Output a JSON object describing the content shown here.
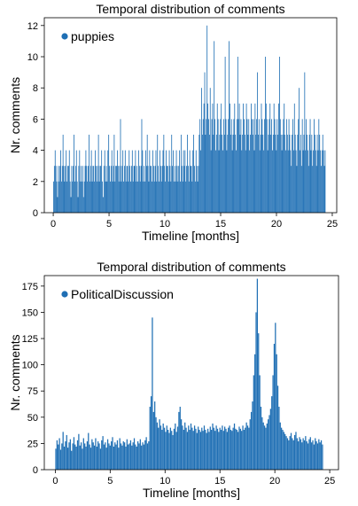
{
  "colors": {
    "bar": "#1f6fb4",
    "axis": "#000000",
    "background": "#ffffff"
  },
  "chart_data": [
    {
      "type": "bar",
      "title": "Temporal distribution of comments",
      "xlabel": "Timeline [months]",
      "ylabel": "Nr. comments",
      "xlim": [
        -0.8,
        25.4
      ],
      "ylim": [
        0,
        12.5
      ],
      "xticks": [
        0,
        5,
        10,
        15,
        20,
        25
      ],
      "yticks": [
        0,
        2,
        4,
        6,
        8,
        10,
        12
      ],
      "x_range": [
        0,
        24.4
      ],
      "legend": {
        "label": "puppies",
        "placement": "top-left"
      },
      "grid": false,
      "series": [
        {
          "name": "puppies",
          "values": [
            2,
            3,
            4,
            3,
            2,
            1,
            3,
            2,
            3,
            4,
            2,
            3,
            5,
            3,
            2,
            3,
            4,
            2,
            3,
            3,
            4,
            2,
            1,
            3,
            2,
            3,
            5,
            2,
            3,
            4,
            2,
            1,
            3,
            4,
            2,
            3,
            2,
            3,
            1,
            2,
            3,
            4,
            3,
            2,
            3,
            5,
            2,
            3,
            4,
            2,
            3,
            3,
            2,
            4,
            3,
            2,
            3,
            5,
            2,
            3,
            3,
            4,
            2,
            1,
            3,
            4,
            2,
            3,
            2,
            4,
            5,
            3,
            2,
            3,
            4,
            2,
            3,
            5,
            2,
            3,
            3,
            4,
            3,
            2,
            3,
            6,
            2,
            3,
            4,
            2,
            3,
            4,
            2,
            3,
            3,
            2,
            4,
            3,
            2,
            3,
            4,
            2,
            3,
            3,
            4,
            2,
            3,
            2,
            4,
            3,
            2,
            3,
            6,
            4,
            2,
            3,
            2,
            4,
            3,
            5,
            3,
            2,
            4,
            3,
            3,
            2,
            4,
            3,
            2,
            3,
            4,
            2,
            5,
            3,
            2,
            4,
            3,
            2,
            3,
            4,
            5,
            3,
            2,
            4,
            3,
            3,
            2,
            4,
            3,
            2,
            5,
            3,
            4,
            2,
            3,
            2,
            4,
            3,
            2,
            3,
            4,
            2,
            5,
            3,
            2,
            4,
            3,
            4,
            2,
            3,
            5,
            3,
            2,
            4,
            3,
            3,
            2,
            4,
            5,
            3,
            2,
            4,
            3,
            2,
            3,
            5,
            6,
            4,
            8,
            5,
            6,
            7,
            9,
            5,
            6,
            12,
            7,
            6,
            5,
            8,
            4,
            6,
            7,
            5,
            11,
            6,
            4,
            5,
            7,
            6,
            4,
            5,
            6,
            7,
            5,
            4,
            6,
            5,
            10,
            6,
            4,
            5,
            6,
            11,
            7,
            5,
            6,
            4,
            5,
            6,
            7,
            5,
            4,
            6,
            10,
            6,
            7,
            5,
            6,
            4,
            5,
            7,
            6,
            5,
            4,
            7,
            6,
            5,
            6,
            4,
            5,
            7,
            6,
            5,
            6,
            4,
            7,
            5,
            6,
            9,
            5,
            6,
            4,
            5,
            7,
            6,
            5,
            4,
            6,
            10,
            7,
            6,
            4,
            5,
            6,
            7,
            5,
            6,
            4,
            5,
            7,
            6,
            5,
            4,
            6,
            5,
            7,
            10,
            6,
            5,
            4,
            5,
            6,
            7,
            5,
            4,
            6,
            5,
            4,
            6,
            5,
            4,
            3,
            5,
            6,
            4,
            7,
            5,
            4,
            3,
            5,
            6,
            8,
            4,
            5,
            3,
            6,
            4,
            5,
            9,
            4,
            6,
            5,
            4,
            3,
            5,
            6,
            4,
            5,
            3,
            4,
            6,
            5,
            4,
            3,
            5,
            4,
            6,
            5,
            4,
            3,
            4,
            5,
            4,
            3,
            4
          ]
        }
      ]
    },
    {
      "type": "bar",
      "title": "Temporal distribution of comments",
      "xlabel": "Timeline [months]",
      "ylabel": "Nr. comments",
      "xlim": [
        -1.0,
        25.8
      ],
      "ylim": [
        0,
        185
      ],
      "xticks": [
        0,
        5,
        10,
        15,
        20,
        25
      ],
      "yticks": [
        0,
        25,
        50,
        75,
        100,
        125,
        150,
        175
      ],
      "x_range": [
        0,
        24.4
      ],
      "legend": {
        "label": "PoliticalDiscussion",
        "placement": "top-left"
      },
      "grid": false,
      "series": [
        {
          "name": "PoliticalDiscussion",
          "values": [
            20,
            28,
            24,
            30,
            19,
            25,
            36,
            22,
            27,
            33,
            21,
            26,
            29,
            18,
            25,
            31,
            24,
            22,
            28,
            34,
            23,
            26,
            20,
            30,
            25,
            22,
            27,
            35,
            24,
            21,
            29,
            26,
            23,
            30,
            22,
            27,
            25,
            20,
            28,
            32,
            24,
            26,
            21,
            29,
            25,
            23,
            27,
            31,
            22,
            26,
            24,
            28,
            21,
            30,
            25,
            23,
            27,
            26,
            22,
            29,
            24,
            25,
            28,
            23,
            26,
            30,
            24,
            22,
            27,
            25,
            29,
            23,
            26,
            24,
            28,
            31,
            25,
            27,
            60,
            70,
            145,
            55,
            65,
            50,
            45,
            40,
            48,
            42,
            38,
            44,
            40,
            36,
            42,
            38,
            35,
            40,
            37,
            33,
            39,
            44,
            36,
            41,
            55,
            60,
            48,
            42,
            38,
            45,
            40,
            36,
            42,
            38,
            44,
            40,
            37,
            42,
            39,
            35,
            41,
            38,
            36,
            40,
            37,
            42,
            38,
            35,
            39,
            36,
            41,
            38,
            44,
            40,
            37,
            42,
            39,
            36,
            40,
            38,
            42,
            37,
            41,
            39,
            36,
            40,
            42,
            38,
            37,
            40,
            44,
            39,
            38,
            36,
            41,
            39,
            37,
            42,
            38,
            40,
            45,
            42,
            40,
            48,
            55,
            65,
            90,
            110,
            150,
            182,
            130,
            90,
            60,
            50,
            45,
            42,
            40,
            44,
            48,
            52,
            58,
            70,
            90,
            120,
            140,
            110,
            80,
            60,
            45,
            40,
            38,
            36,
            34,
            32,
            30,
            28,
            32,
            35,
            30,
            28,
            33,
            36,
            30,
            27,
            31,
            29,
            26,
            30,
            28,
            32,
            27,
            25,
            29,
            31,
            26,
            28,
            24,
            30,
            27,
            25,
            29,
            26,
            28,
            24
          ]
        }
      ]
    }
  ]
}
